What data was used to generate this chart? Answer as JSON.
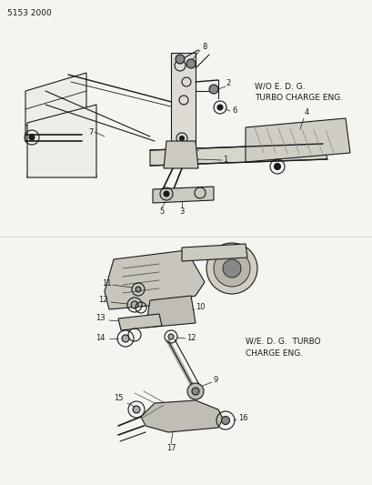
{
  "title_code": "5153 2000",
  "bg_color": "#f5f4f0",
  "line_color": "#1a1a1a",
  "text_color": "#1a1a1a",
  "top_label1": "W/O E. D. G.",
  "top_label2": "TURBO CHARGE ENG.",
  "bot_label1": "W/E. D. G.  TURBO",
  "bot_label2": "CHARGE ENG.",
  "figsize": [
    4.1,
    5.33
  ],
  "dpi": 100
}
